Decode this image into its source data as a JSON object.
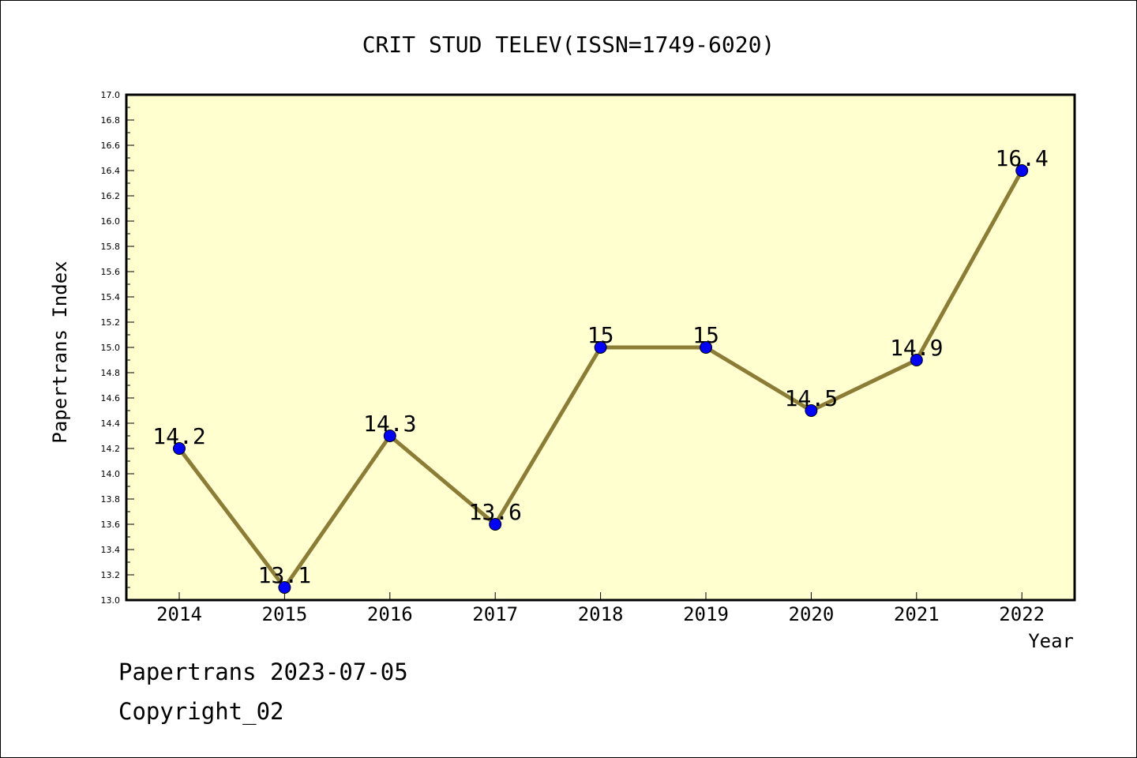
{
  "chart_data": {
    "type": "line",
    "title": "CRIT STUD TELEV(ISSN=1749-6020)",
    "xlabel": "Year",
    "ylabel": "Papertrans Index",
    "categories": [
      "2014",
      "2015",
      "2016",
      "2017",
      "2018",
      "2019",
      "2020",
      "2021",
      "2022"
    ],
    "values": [
      14.2,
      13.1,
      14.3,
      13.6,
      15,
      15,
      14.5,
      14.9,
      16.4
    ],
    "data_labels": [
      "14.2",
      "13.1",
      "14.3",
      "13.6",
      "15",
      "15",
      "14.5",
      "14.9",
      "16.4"
    ],
    "ylim": [
      13.0,
      17.0
    ],
    "yticks": [
      "13.0",
      "13.2",
      "13.4",
      "13.6",
      "13.8",
      "14.0",
      "14.2",
      "14.4",
      "14.6",
      "14.8",
      "15.0",
      "15.2",
      "15.4",
      "15.6",
      "15.8",
      "16.0",
      "16.2",
      "16.4",
      "16.6",
      "16.8",
      "17.0"
    ],
    "grid": false,
    "colors": {
      "plot_background": "#ffffd0",
      "line": "#8b7d35",
      "marker": "#0000ff",
      "frame": "#000000"
    }
  },
  "footer": {
    "date": "Papertrans 2023-07-05",
    "copyright": "Copyright_02"
  }
}
